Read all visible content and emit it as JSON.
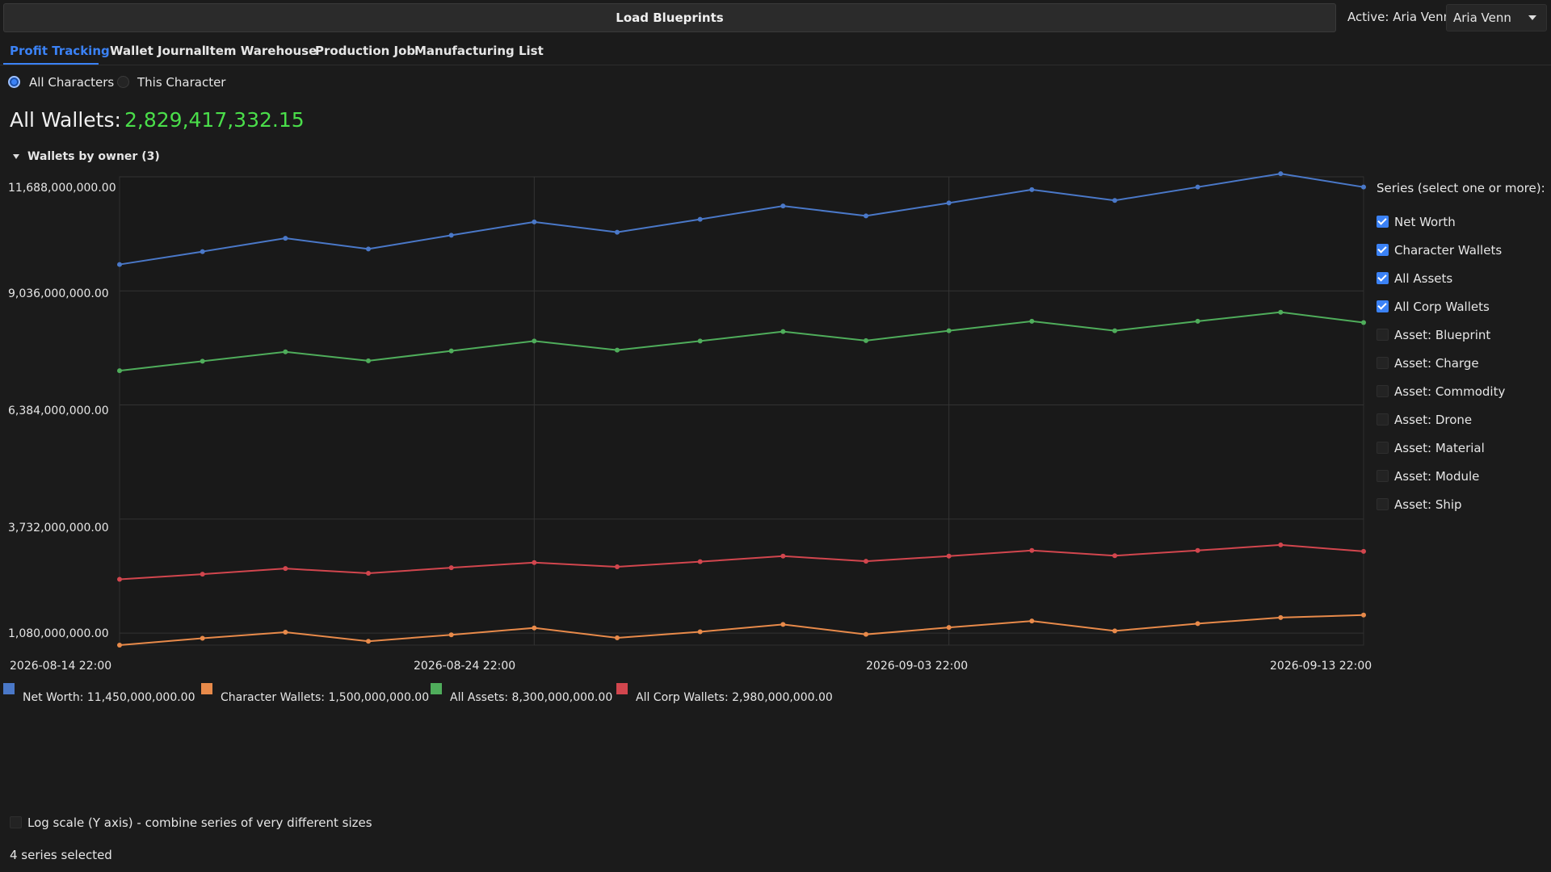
{
  "toolbar": {
    "load_label": "Load Blueprints",
    "active_label": "Active: Aria Venn",
    "character_select": "Aria Venn"
  },
  "tabs": [
    {
      "label": "Profit Tracking",
      "active": true
    },
    {
      "label": "Wallet Journal",
      "active": false
    },
    {
      "label": "Item Warehouse",
      "active": false
    },
    {
      "label": "Production Job",
      "active": false
    },
    {
      "label": "Manufacturing List",
      "active": false
    }
  ],
  "scope": {
    "all_label": "All Characters",
    "this_label": "This Character",
    "selected": "all"
  },
  "summary": {
    "title": "All Wallets:",
    "value": "2,829,417,332.15"
  },
  "group": {
    "label": "Wallets by owner (3)"
  },
  "series_panel": {
    "title": "Series (select one or more):",
    "items": [
      {
        "label": "Net Worth",
        "checked": true
      },
      {
        "label": "Character Wallets",
        "checked": true
      },
      {
        "label": "All Assets",
        "checked": true
      },
      {
        "label": "All Corp Wallets",
        "checked": true
      },
      {
        "label": "Asset: Blueprint",
        "checked": false
      },
      {
        "label": "Asset: Charge",
        "checked": false
      },
      {
        "label": "Asset: Commodity",
        "checked": false
      },
      {
        "label": "Asset: Drone",
        "checked": false
      },
      {
        "label": "Asset: Material",
        "checked": false
      },
      {
        "label": "Asset: Module",
        "checked": false
      },
      {
        "label": "Asset: Ship",
        "checked": false
      }
    ]
  },
  "legend": [
    {
      "text": "Net Worth: 11,450,000,000.00",
      "color": "#4a78c8"
    },
    {
      "text": "Character Wallets: 1,500,000,000.00",
      "color": "#e88a4a"
    },
    {
      "text": "All Assets: 8,300,000,000.00",
      "color": "#4fad5b"
    },
    {
      "text": "All Corp Wallets: 2,980,000,000.00",
      "color": "#d2464e"
    }
  ],
  "log_scale_label": "Log scale (Y axis) - combine series of very different sizes",
  "log_scale_checked": false,
  "status": "4 series selected",
  "chart_data": {
    "type": "line",
    "y_tick_labels": [
      "11,688,000,000.00",
      "9,036,000,000.00",
      "6,384,000,000.00",
      "3,732,000,000.00",
      "1,080,000,000.00"
    ],
    "y_ticks": [
      11688000000,
      9036000000,
      6384000000,
      3732000000,
      1080000000
    ],
    "ylim": [
      800000000,
      11688000000
    ],
    "x_tick_labels": [
      "2026-08-14 22:00",
      "2026-08-24 22:00",
      "2026-09-03 22:00",
      "2026-09-13 22:00"
    ],
    "x": [
      "2026-08-14 22:00",
      "2026-08-16 22:00",
      "2026-08-18 22:00",
      "2026-08-20 22:00",
      "2026-08-22 22:00",
      "2026-08-24 22:00",
      "2026-08-26 22:00",
      "2026-08-28 22:00",
      "2026-08-30 22:00",
      "2026-09-01 22:00",
      "2026-09-03 22:00",
      "2026-09-05 22:00",
      "2026-09-07 22:00",
      "2026-09-09 22:00",
      "2026-09-11 22:00",
      "2026-09-13 22:00"
    ],
    "grid": true,
    "legend_position": "bottom",
    "series": [
      {
        "name": "Net Worth",
        "color": "#4a78c8",
        "values": [
          9650000000,
          9950000000,
          10260000000,
          10010000000,
          10330000000,
          10640000000,
          10400000000,
          10700000000,
          11010000000,
          10780000000,
          11080000000,
          11390000000,
          11140000000,
          11450000000,
          11760000000,
          11450000000
        ]
      },
      {
        "name": "Character Wallets",
        "color": "#e88a4a",
        "values": [
          800000000,
          960000000,
          1100000000,
          890000000,
          1040000000,
          1200000000,
          970000000,
          1110000000,
          1280000000,
          1050000000,
          1210000000,
          1360000000,
          1130000000,
          1300000000,
          1440000000,
          1500000000
        ]
      },
      {
        "name": "All Assets",
        "color": "#4fad5b",
        "values": [
          7180000000,
          7400000000,
          7620000000,
          7410000000,
          7640000000,
          7870000000,
          7660000000,
          7870000000,
          8090000000,
          7880000000,
          8110000000,
          8330000000,
          8110000000,
          8330000000,
          8540000000,
          8300000000
        ]
      },
      {
        "name": "All Corp Wallets",
        "color": "#d2464e",
        "values": [
          2330000000,
          2450000000,
          2580000000,
          2470000000,
          2600000000,
          2720000000,
          2620000000,
          2740000000,
          2870000000,
          2750000000,
          2870000000,
          3000000000,
          2880000000,
          3000000000,
          3130000000,
          2980000000
        ]
      }
    ]
  }
}
